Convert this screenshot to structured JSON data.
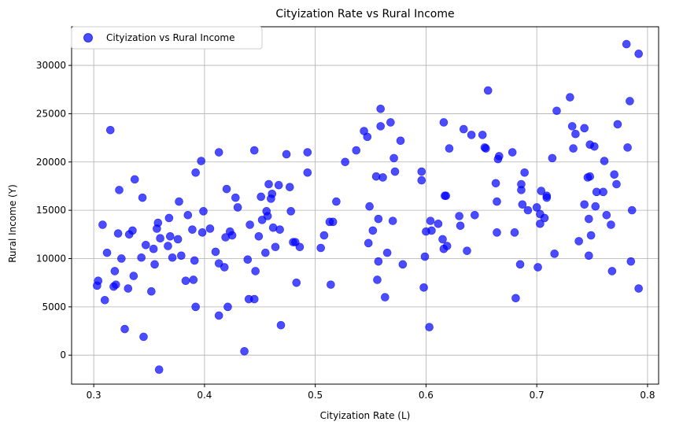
{
  "chart_data": {
    "type": "scatter",
    "title": "Cityization Rate vs Rural Income",
    "xlabel": "Cityization Rate (L)",
    "ylabel": "Rural Income (Y)",
    "xlim": [
      0.28,
      0.81
    ],
    "ylim": [
      -3000,
      34000
    ],
    "xticks": [
      0.3,
      0.4,
      0.5,
      0.6,
      0.7,
      0.8
    ],
    "xtick_labels": [
      "0.3",
      "0.4",
      "0.5",
      "0.6",
      "0.7",
      "0.8"
    ],
    "yticks": [
      0,
      5000,
      10000,
      15000,
      20000,
      25000,
      30000
    ],
    "ytick_labels": [
      "0",
      "5000",
      "10000",
      "15000",
      "20000",
      "25000",
      "30000"
    ],
    "grid": true,
    "legend_position": "top-left",
    "series": [
      {
        "name": "Cityization vs Rural Income",
        "color": "#0000ff",
        "alpha": 0.7,
        "points": [
          [
            0.303,
            7200
          ],
          [
            0.304,
            7700
          ],
          [
            0.308,
            13500
          ],
          [
            0.31,
            5700
          ],
          [
            0.312,
            10600
          ],
          [
            0.315,
            23300
          ],
          [
            0.318,
            7100
          ],
          [
            0.319,
            8700
          ],
          [
            0.32,
            7300
          ],
          [
            0.322,
            12600
          ],
          [
            0.323,
            17100
          ],
          [
            0.325,
            10000
          ],
          [
            0.328,
            2700
          ],
          [
            0.331,
            6900
          ],
          [
            0.332,
            12500
          ],
          [
            0.335,
            12900
          ],
          [
            0.336,
            8200
          ],
          [
            0.337,
            18200
          ],
          [
            0.343,
            10100
          ],
          [
            0.344,
            16300
          ],
          [
            0.345,
            1900
          ],
          [
            0.347,
            11400
          ],
          [
            0.352,
            6600
          ],
          [
            0.354,
            11000
          ],
          [
            0.355,
            9400
          ],
          [
            0.357,
            13100
          ],
          [
            0.358,
            13700
          ],
          [
            0.359,
            -1500
          ],
          [
            0.36,
            12100
          ],
          [
            0.367,
            11300
          ],
          [
            0.368,
            14200
          ],
          [
            0.369,
            12300
          ],
          [
            0.371,
            10100
          ],
          [
            0.376,
            12000
          ],
          [
            0.377,
            15900
          ],
          [
            0.379,
            10300
          ],
          [
            0.383,
            7700
          ],
          [
            0.385,
            14500
          ],
          [
            0.389,
            13000
          ],
          [
            0.39,
            7800
          ],
          [
            0.391,
            9800
          ],
          [
            0.392,
            18900
          ],
          [
            0.392,
            5000
          ],
          [
            0.397,
            20100
          ],
          [
            0.398,
            12700
          ],
          [
            0.399,
            14900
          ],
          [
            0.405,
            13100
          ],
          [
            0.41,
            10700
          ],
          [
            0.413,
            9500
          ],
          [
            0.413,
            4100
          ],
          [
            0.413,
            21000
          ],
          [
            0.418,
            9100
          ],
          [
            0.419,
            12200
          ],
          [
            0.42,
            17200
          ],
          [
            0.421,
            5000
          ],
          [
            0.423,
            12800
          ],
          [
            0.425,
            12400
          ],
          [
            0.428,
            16300
          ],
          [
            0.43,
            15300
          ],
          [
            0.436,
            400
          ],
          [
            0.439,
            9900
          ],
          [
            0.44,
            5800
          ],
          [
            0.441,
            13500
          ],
          [
            0.445,
            21200
          ],
          [
            0.445,
            5800
          ],
          [
            0.446,
            8700
          ],
          [
            0.449,
            12300
          ],
          [
            0.451,
            16400
          ],
          [
            0.452,
            14000
          ],
          [
            0.455,
            10600
          ],
          [
            0.456,
            14900
          ],
          [
            0.457,
            14400
          ],
          [
            0.458,
            17700
          ],
          [
            0.46,
            16200
          ],
          [
            0.461,
            16700
          ],
          [
            0.462,
            13200
          ],
          [
            0.464,
            11200
          ],
          [
            0.467,
            17600
          ],
          [
            0.468,
            13000
          ],
          [
            0.469,
            3100
          ],
          [
            0.474,
            20800
          ],
          [
            0.477,
            17400
          ],
          [
            0.478,
            14900
          ],
          [
            0.48,
            11700
          ],
          [
            0.482,
            11700
          ],
          [
            0.483,
            7500
          ],
          [
            0.486,
            11200
          ],
          [
            0.493,
            18900
          ],
          [
            0.493,
            21000
          ],
          [
            0.505,
            11100
          ],
          [
            0.508,
            12400
          ],
          [
            0.513,
            13800
          ],
          [
            0.514,
            7300
          ],
          [
            0.516,
            13800
          ],
          [
            0.519,
            15900
          ],
          [
            0.527,
            20000
          ],
          [
            0.537,
            21200
          ],
          [
            0.544,
            23200
          ],
          [
            0.547,
            22600
          ],
          [
            0.548,
            11600
          ],
          [
            0.549,
            15400
          ],
          [
            0.552,
            12900
          ],
          [
            0.555,
            18500
          ],
          [
            0.556,
            7800
          ],
          [
            0.557,
            14100
          ],
          [
            0.557,
            9700
          ],
          [
            0.559,
            25500
          ],
          [
            0.559,
            23700
          ],
          [
            0.561,
            18400
          ],
          [
            0.563,
            6000
          ],
          [
            0.565,
            10600
          ],
          [
            0.568,
            24100
          ],
          [
            0.57,
            13900
          ],
          [
            0.571,
            20400
          ],
          [
            0.572,
            19000
          ],
          [
            0.577,
            22200
          ],
          [
            0.579,
            9400
          ],
          [
            0.596,
            19000
          ],
          [
            0.596,
            18100
          ],
          [
            0.598,
            7000
          ],
          [
            0.599,
            10200
          ],
          [
            0.6,
            12800
          ],
          [
            0.603,
            2900
          ],
          [
            0.604,
            13900
          ],
          [
            0.605,
            12900
          ],
          [
            0.611,
            13600
          ],
          [
            0.615,
            12000
          ],
          [
            0.616,
            24100
          ],
          [
            0.616,
            11000
          ],
          [
            0.617,
            16500
          ],
          [
            0.618,
            16500
          ],
          [
            0.619,
            11300
          ],
          [
            0.621,
            21400
          ],
          [
            0.63,
            14400
          ],
          [
            0.631,
            13400
          ],
          [
            0.634,
            23400
          ],
          [
            0.637,
            10800
          ],
          [
            0.641,
            22800
          ],
          [
            0.644,
            14500
          ],
          [
            0.651,
            22800
          ],
          [
            0.653,
            21500
          ],
          [
            0.654,
            21400
          ],
          [
            0.656,
            27400
          ],
          [
            0.663,
            17800
          ],
          [
            0.664,
            15900
          ],
          [
            0.664,
            12700
          ],
          [
            0.665,
            20300
          ],
          [
            0.666,
            20600
          ],
          [
            0.678,
            21000
          ],
          [
            0.68,
            12700
          ],
          [
            0.681,
            5900
          ],
          [
            0.685,
            9400
          ],
          [
            0.686,
            17100
          ],
          [
            0.686,
            17700
          ],
          [
            0.687,
            15600
          ],
          [
            0.689,
            18900
          ],
          [
            0.692,
            15000
          ],
          [
            0.7,
            15300
          ],
          [
            0.701,
            9100
          ],
          [
            0.703,
            13600
          ],
          [
            0.703,
            14600
          ],
          [
            0.704,
            17000
          ],
          [
            0.707,
            14200
          ],
          [
            0.709,
            16300
          ],
          [
            0.709,
            16500
          ],
          [
            0.714,
            20400
          ],
          [
            0.716,
            10500
          ],
          [
            0.718,
            25300
          ],
          [
            0.73,
            26700
          ],
          [
            0.732,
            23700
          ],
          [
            0.733,
            21400
          ],
          [
            0.735,
            22900
          ],
          [
            0.738,
            11800
          ],
          [
            0.743,
            23500
          ],
          [
            0.743,
            15600
          ],
          [
            0.746,
            18400
          ],
          [
            0.747,
            14100
          ],
          [
            0.747,
            10300
          ],
          [
            0.748,
            18500
          ],
          [
            0.748,
            21800
          ],
          [
            0.749,
            12400
          ],
          [
            0.752,
            21600
          ],
          [
            0.753,
            15400
          ],
          [
            0.754,
            16900
          ],
          [
            0.76,
            16900
          ],
          [
            0.761,
            20100
          ],
          [
            0.763,
            14500
          ],
          [
            0.767,
            13500
          ],
          [
            0.768,
            8700
          ],
          [
            0.77,
            18700
          ],
          [
            0.772,
            17700
          ],
          [
            0.773,
            23900
          ],
          [
            0.781,
            32200
          ],
          [
            0.782,
            21500
          ],
          [
            0.784,
            26300
          ],
          [
            0.785,
            9700
          ],
          [
            0.786,
            15000
          ],
          [
            0.792,
            31200
          ],
          [
            0.792,
            6900
          ]
        ]
      }
    ]
  }
}
